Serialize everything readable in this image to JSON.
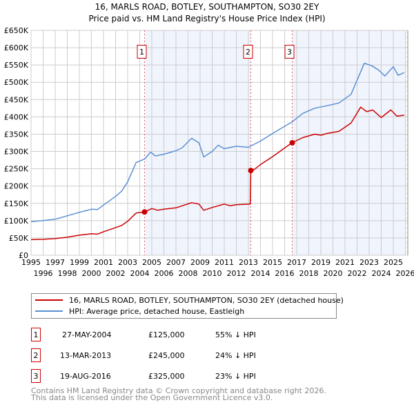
{
  "chart_data": {
    "type": "line",
    "title": "16, MARLS ROAD, BOTLEY, SOUTHAMPTON, SO30 2EY",
    "subtitle": "Price paid vs. HM Land Registry's House Price Index (HPI)",
    "xlabel": "",
    "ylabel": "",
    "xlim": [
      1995,
      2026.2
    ],
    "ylim": [
      0,
      650000
    ],
    "grid": true,
    "x_ticks": [
      "1995",
      "1996",
      "1997",
      "1998",
      "1999",
      "2000",
      "2001",
      "2002",
      "2003",
      "2004",
      "2005",
      "2006",
      "2007",
      "2008",
      "2009",
      "2010",
      "2011",
      "2012",
      "2013",
      "2014",
      "2015",
      "2016",
      "2017",
      "2018",
      "2019",
      "2020",
      "2021",
      "2022",
      "2023",
      "2024",
      "2025",
      "2026"
    ],
    "y_ticks": [
      {
        "value": 0,
        "label": "£0"
      },
      {
        "value": 50000,
        "label": "£50K"
      },
      {
        "value": 100000,
        "label": "£100K"
      },
      {
        "value": 150000,
        "label": "£150K"
      },
      {
        "value": 200000,
        "label": "£200K"
      },
      {
        "value": 250000,
        "label": "£250K"
      },
      {
        "value": 300000,
        "label": "£300K"
      },
      {
        "value": 350000,
        "label": "£350K"
      },
      {
        "value": 400000,
        "label": "£400K"
      },
      {
        "value": 450000,
        "label": "£450K"
      },
      {
        "value": 500000,
        "label": "£500K"
      },
      {
        "value": 550000,
        "label": "£550K"
      },
      {
        "value": 600000,
        "label": "£600K"
      },
      {
        "value": 650000,
        "label": "£650K"
      }
    ],
    "series": [
      {
        "name": "16, MARLS ROAD, BOTLEY, SOUTHAMPTON, SO30 2EY (detached house)",
        "color": "#cc0000",
        "x": [
          1995,
          1996,
          1997,
          1998,
          1999,
          2000,
          2000.5,
          2001,
          2002,
          2002.5,
          2003,
          2003.7,
          2004.4,
          2005,
          2005.5,
          2006,
          2007,
          2008.3,
          2008.9,
          2009.3,
          2010,
          2011,
          2011.5,
          2012,
          2013.15,
          2013.2,
          2013.5,
          2014,
          2015,
          2016.6,
          2017.5,
          2018.5,
          2019,
          2019.5,
          2020.5,
          2021.5,
          2022.3,
          2022.8,
          2023.3,
          2024,
          2024.8,
          2025.3,
          2025.9
        ],
        "y": [
          45000,
          46000,
          48000,
          52000,
          58000,
          62000,
          61000,
          68000,
          80000,
          86000,
          98000,
          122000,
          125000,
          135000,
          130000,
          133000,
          137000,
          152000,
          148000,
          130000,
          138000,
          148000,
          143000,
          146000,
          148000,
          245000,
          248000,
          262000,
          285000,
          325000,
          340000,
          350000,
          347000,
          352000,
          358000,
          382000,
          428000,
          415000,
          420000,
          398000,
          420000,
          402000,
          405000
        ]
      },
      {
        "name": "HPI: Average price, detached house, Eastleigh",
        "color": "#5b8fd4",
        "x": [
          1995,
          1996,
          1997,
          1998,
          1999,
          2000,
          2000.5,
          2001,
          2002,
          2002.5,
          2003,
          2003.7,
          2004.4,
          2004.9,
          2005.3,
          2006,
          2007,
          2007.5,
          2008.3,
          2008.9,
          2009.3,
          2010,
          2010.5,
          2011,
          2012,
          2013,
          2014,
          2015,
          2016.6,
          2017.5,
          2018.5,
          2019.5,
          2020.5,
          2021.5,
          2022.3,
          2022.6,
          2023.2,
          2023.8,
          2024.3,
          2025,
          2025.4,
          2025.9
        ],
        "y": [
          97000,
          100000,
          104000,
          114000,
          124000,
          133000,
          132000,
          145000,
          170000,
          185000,
          212000,
          268000,
          278000,
          298000,
          287000,
          292000,
          302000,
          310000,
          338000,
          325000,
          284000,
          300000,
          318000,
          308000,
          315000,
          312000,
          330000,
          352000,
          385000,
          410000,
          425000,
          432000,
          440000,
          465000,
          530000,
          555000,
          548000,
          535000,
          518000,
          545000,
          520000,
          528000
        ]
      }
    ],
    "sales": [
      {
        "marker": "1",
        "x": 2004.4,
        "price": 125000
      },
      {
        "marker": "2",
        "x": 2013.2,
        "price": 245000
      },
      {
        "marker": "3",
        "x": 2016.63,
        "price": 325000
      }
    ],
    "legend_placement": "bottom"
  },
  "table": [
    {
      "num": "1",
      "date": "27-MAY-2004",
      "price": "£125,000",
      "hpi": "55% ↓ HPI"
    },
    {
      "num": "2",
      "date": "13-MAR-2013",
      "price": "£245,000",
      "hpi": "24% ↓ HPI"
    },
    {
      "num": "3",
      "date": "19-AUG-2016",
      "price": "£325,000",
      "hpi": "23% ↓ HPI"
    }
  ],
  "footer": {
    "line1": "Contains HM Land Registry data © Crown copyright and database right 2026.",
    "line2": "This data is licensed under the Open Government Licence v3.0."
  }
}
